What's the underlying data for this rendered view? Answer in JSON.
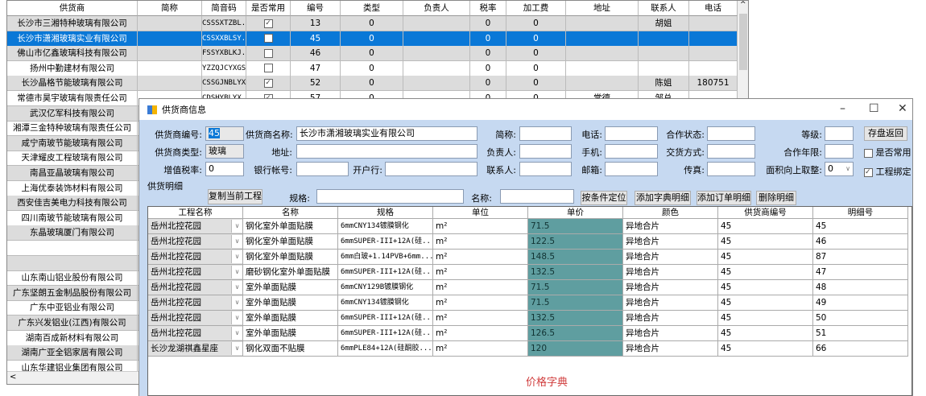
{
  "supplier_grid": {
    "columns": [
      "供货商",
      "简称",
      "简音码",
      "是否常用",
      "编号",
      "类型",
      "负责人",
      "税率",
      "加工费",
      "地址",
      "联系人",
      "电话"
    ],
    "rows": [
      {
        "name": "长沙市三湘特种玻璃有限公司",
        "short": "",
        "code": "CSSSXTZBL...",
        "common": true,
        "id": "13",
        "type": "0",
        "owner": "",
        "tax": "0",
        "fee": "0",
        "addr": "",
        "contact": "胡姐",
        "phone": ""
      },
      {
        "name": "长沙市潇湘玻璃实业有限公司",
        "short": "",
        "code": "CSSXXBLSY...",
        "common": false,
        "id": "45",
        "type": "0",
        "owner": "",
        "tax": "0",
        "fee": "0",
        "addr": "",
        "contact": "",
        "phone": "",
        "selected": true
      },
      {
        "name": "佛山市亿鑫玻璃科技有限公司",
        "short": "",
        "code": "FSSYXBLKJ...",
        "common": false,
        "id": "46",
        "type": "0",
        "owner": "",
        "tax": "0",
        "fee": "0",
        "addr": "",
        "contact": "",
        "phone": ""
      },
      {
        "name": "扬州中勤建材有限公司",
        "short": "",
        "code": "YZZQJCYXGS",
        "common": false,
        "id": "47",
        "type": "0",
        "owner": "",
        "tax": "0",
        "fee": "0",
        "addr": "",
        "contact": "",
        "phone": ""
      },
      {
        "name": "长沙晶格节能玻璃有限公司",
        "short": "",
        "code": "CSSGJNBLYXGS",
        "common": true,
        "id": "52",
        "type": "0",
        "owner": "",
        "tax": "0",
        "fee": "0",
        "addr": "",
        "contact": "陈姐",
        "phone": "180751"
      },
      {
        "name": "常德市昊宇玻璃有限责任公司",
        "short": "",
        "code": "CDSHYBLYX...",
        "common": true,
        "id": "57",
        "type": "0",
        "owner": "",
        "tax": "0",
        "fee": "0",
        "addr": "常德",
        "contact": "邹总",
        "phone": ""
      },
      {
        "name": "武汉亿军科技有限公司"
      },
      {
        "name": "湘潭三金特种玻璃有限责任公司"
      },
      {
        "name": "咸宁南玻节能玻璃有限公司"
      },
      {
        "name": "天津耀皮工程玻璃有限公司"
      },
      {
        "name": "南昌亚晶玻璃有限公司"
      },
      {
        "name": "上海优泰装饰材料有限公司"
      },
      {
        "name": "西安佳吉美电力科技有限公司"
      },
      {
        "name": "四川南玻节能玻璃有限公司"
      },
      {
        "name": "东晶玻璃厦门有限公司"
      },
      {
        "name": ""
      },
      {
        "name": ""
      },
      {
        "name": "山东南山铝业股份有限公司"
      },
      {
        "name": "广东坚朗五金制品股份有限公司"
      },
      {
        "name": "广东中亚铝业有限公司"
      },
      {
        "name": "广东兴发铝业(江西)有限公司"
      },
      {
        "name": "湖南百成新材料有限公司"
      },
      {
        "name": "湖南广亚全铝家居有限公司"
      },
      {
        "name": "山东华建铝业集团有限公司"
      }
    ]
  },
  "dialog": {
    "title": "供货商信息",
    "fields": {
      "supplier_id_label": "供货商编号:",
      "supplier_id": "45",
      "supplier_name_label": "供货商名称:",
      "supplier_name": "长沙市潇湘玻璃实业有限公司",
      "short_label": "简称:",
      "phone_label": "电话:",
      "coop_status_label": "合作状态:",
      "grade_label": "等级:",
      "type_label": "供货商类型:",
      "type": "玻璃",
      "address_label": "地址:",
      "owner_label": "负责人:",
      "mobile_label": "手机:",
      "delivery_label": "交货方式:",
      "coop_years_label": "合作年限:",
      "vat_label": "增值税率:",
      "vat": "0",
      "bank_account_label": "银行帐号:",
      "bank_label": "开户行:",
      "contact_label": "联系人:",
      "email_label": "邮箱:",
      "fax_label": "传真:",
      "round_label": "面积向上取整:",
      "round_value": "0",
      "common_label": "是否常用",
      "common_checked": false,
      "bind_label": "工程绑定",
      "bind_checked": true
    },
    "save_button": "存盘返回",
    "detail_section": "供货明细",
    "copy_button": "复制当前工程",
    "spec_label": "规格:",
    "name_label": "名称:",
    "locate_button": "按条件定位",
    "add_dict_button": "添加字典明细",
    "add_order_button": "添加订单明细",
    "delete_button": "删除明细",
    "detail_columns": [
      "工程名称",
      "名称",
      "规格",
      "单位",
      "单价",
      "颜色",
      "供货商编号",
      "明细号"
    ],
    "detail_rows": [
      [
        "岳州北控花园",
        "钢化室外单面贴膜",
        "6mmCNY134镀膜钢化",
        "m²",
        "71.5",
        "异地合片",
        "45",
        "45"
      ],
      [
        "岳州北控花园",
        "钢化室外单面贴膜",
        "6mmSUPER-III+12A(硅...",
        "m²",
        "122.5",
        "异地合片",
        "45",
        "46"
      ],
      [
        "岳州北控花园",
        "钢化室外单面贴膜",
        "6mm白玻+1.14PVB+6mm...",
        "m²",
        "148.5",
        "异地合片",
        "45",
        "87"
      ],
      [
        "岳州北控花园",
        "磨砂钢化室外单面贴膜",
        "6mmSUPER-III+12A(硅...",
        "m²",
        "132.5",
        "异地合片",
        "45",
        "47"
      ],
      [
        "岳州北控花园",
        "室外单面贴膜",
        "6mmCNY129B镀膜钢化",
        "m²",
        "71.5",
        "异地合片",
        "45",
        "48"
      ],
      [
        "岳州北控花园",
        "室外单面贴膜",
        "6mmCNY134镀膜钢化",
        "m²",
        "71.5",
        "异地合片",
        "45",
        "49"
      ],
      [
        "岳州北控花园",
        "室外单面贴膜",
        "6mmSUPER-III+12A(硅...",
        "m²",
        "132.5",
        "异地合片",
        "45",
        "50"
      ],
      [
        "岳州北控花园",
        "室外单面贴膜",
        "6mmSUPER-III+12A(硅...",
        "m²",
        "126.5",
        "异地合片",
        "45",
        "51"
      ],
      [
        "长沙龙湖祺鑫星座",
        "钢化双面不贴膜",
        "6mmPLE84+12A(硅酮胶...",
        "m²",
        "120",
        "异地合片",
        "45",
        "66"
      ]
    ],
    "price_dict_label": "价格字典"
  },
  "colors": {
    "selection": "#0a78d7",
    "dialog_body": "#c6d9f1",
    "price_cell": "#5f9ea0",
    "dict_label": "#d03c3c"
  }
}
